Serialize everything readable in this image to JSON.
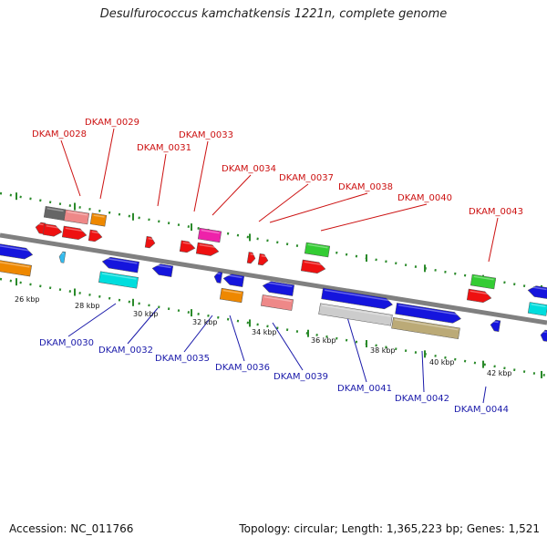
{
  "title": "Desulfurococcus kamchatkensis 1221n, complete genome",
  "accession": "Accession: NC_011766",
  "topology": "Topology: circular; Length: 1,365,223 bp; Genes: 1,521",
  "colors": {
    "upper_label": "#cc1111",
    "lower_label": "#1a1aaa",
    "backbone": "#8c8c8c",
    "dots": "#2a8a2a",
    "ticks": "#2a8a2a"
  },
  "scale_ticks": [
    "26 kbp",
    "28 kbp",
    "30 kbp",
    "32 kbp",
    "34 kbp",
    "36 kbp",
    "38 kbp",
    "40 kbp",
    "42 kbp"
  ],
  "upper_labels": [
    "DKAM_0028",
    "DKAM_0029",
    "DKAM_0031",
    "DKAM_0033",
    "DKAM_0034",
    "DKAM_0037",
    "DKAM_0038",
    "DKAM_0040",
    "DKAM_0043"
  ],
  "lower_labels": [
    "DKAM_0030",
    "DKAM_0032",
    "DKAM_0035",
    "DKAM_0036",
    "DKAM_0039",
    "DKAM_0041",
    "DKAM_0042",
    "DKAM_0044"
  ]
}
